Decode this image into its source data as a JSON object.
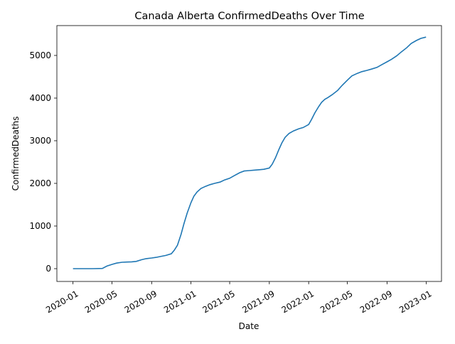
{
  "chart_data": {
    "type": "line",
    "title": "Canada Alberta ConfirmedDeaths Over Time",
    "xlabel": "Date",
    "ylabel": "ConfirmedDeaths",
    "x_ticks": [
      "2020-01",
      "2020-05",
      "2020-09",
      "2021-01",
      "2021-05",
      "2021-09",
      "2022-01",
      "2022-05",
      "2022-09",
      "2023-01"
    ],
    "y_ticks": [
      0,
      1000,
      2000,
      3000,
      4000,
      5000
    ],
    "xlim": [
      "2019-11-12",
      "2023-02-17"
    ],
    "ylim": [
      -300,
      5700
    ],
    "grid": false,
    "line_color": "#1f77b4",
    "series": [
      {
        "x": [
          "2020-01-01",
          "2020-03-01",
          "2020-04-01",
          "2020-04-15",
          "2020-05-01",
          "2020-05-15",
          "2020-06-01",
          "2020-06-15",
          "2020-07-01",
          "2020-07-15",
          "2020-08-01",
          "2020-08-15",
          "2020-09-01",
          "2020-09-15",
          "2020-10-01",
          "2020-10-15",
          "2020-11-01",
          "2020-11-10",
          "2020-11-20",
          "2020-12-01",
          "2020-12-10",
          "2020-12-20",
          "2021-01-01",
          "2021-01-10",
          "2021-01-20",
          "2021-02-01",
          "2021-02-15",
          "2021-03-01",
          "2021-03-15",
          "2021-04-01",
          "2021-04-15",
          "2021-05-01",
          "2021-05-15",
          "2021-06-01",
          "2021-06-15",
          "2021-07-01",
          "2021-07-15",
          "2021-08-01",
          "2021-08-15",
          "2021-09-01",
          "2021-09-10",
          "2021-09-20",
          "2021-10-01",
          "2021-10-10",
          "2021-10-20",
          "2021-11-01",
          "2021-11-15",
          "2021-12-01",
          "2021-12-15",
          "2022-01-01",
          "2022-01-10",
          "2022-01-20",
          "2022-02-01",
          "2022-02-10",
          "2022-02-20",
          "2022-03-01",
          "2022-03-15",
          "2022-04-01",
          "2022-04-15",
          "2022-05-01",
          "2022-05-15",
          "2022-06-01",
          "2022-06-15",
          "2022-07-01",
          "2022-07-15",
          "2022-08-01",
          "2022-08-15",
          "2022-09-01",
          "2022-09-15",
          "2022-10-01",
          "2022-10-15",
          "2022-11-01",
          "2022-11-15",
          "2022-12-01",
          "2022-12-15",
          "2022-12-31"
        ],
        "values": [
          0,
          0,
          5,
          60,
          100,
          130,
          150,
          155,
          160,
          170,
          210,
          235,
          250,
          265,
          290,
          310,
          350,
          430,
          550,
          800,
          1050,
          1300,
          1550,
          1700,
          1800,
          1880,
          1930,
          1970,
          2000,
          2030,
          2080,
          2120,
          2180,
          2250,
          2290,
          2300,
          2310,
          2320,
          2330,
          2360,
          2450,
          2600,
          2800,
          2950,
          3080,
          3170,
          3230,
          3280,
          3310,
          3380,
          3500,
          3650,
          3800,
          3900,
          3970,
          4010,
          4080,
          4180,
          4300,
          4420,
          4520,
          4580,
          4620,
          4650,
          4680,
          4720,
          4780,
          4850,
          4910,
          4990,
          5080,
          5180,
          5280,
          5350,
          5400,
          5430
        ]
      }
    ]
  }
}
